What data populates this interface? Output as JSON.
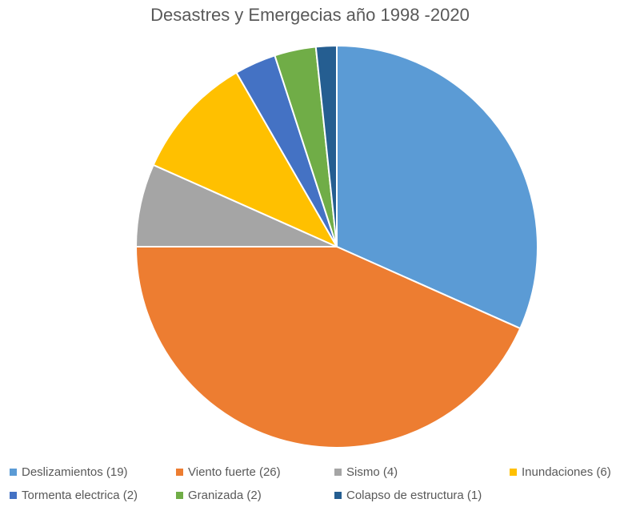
{
  "chart_data": {
    "type": "pie",
    "title": "Desastres y Emergecias año 1998 -2020",
    "categories": [
      "Deslizamientos (19)",
      "Viento fuerte (26)",
      "Sismo (4)",
      "Inundaciones (6)",
      "Tormenta electrica (2)",
      "Granizada (2)",
      "Colapso de estructura (1)"
    ],
    "values": [
      19,
      26,
      4,
      6,
      2,
      2,
      1
    ],
    "colors": [
      "#5B9BD5",
      "#ED7D31",
      "#A5A5A5",
      "#FFC000",
      "#4472C4",
      "#70AD47",
      "#255E91"
    ],
    "legend_position": "bottom",
    "start_angle": "12 o'clock",
    "direction": "clockwise"
  }
}
